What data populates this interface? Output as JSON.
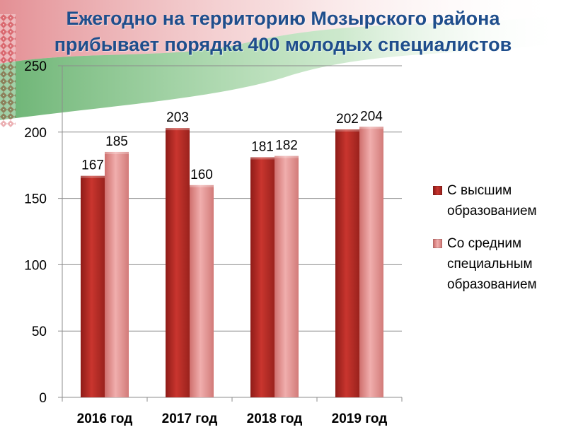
{
  "title": {
    "line1": "Ежегодно на территорию Мозырского района",
    "line2": "прибывает порядка 400 молодых специалистов"
  },
  "colors": {
    "series1": "#c0302a",
    "series2": "#e59c9b",
    "grid": "#8c8c8c",
    "title": "#1f4e8c",
    "flag_red": "#c8202a",
    "flag_green": "#3a9a45"
  },
  "legend": {
    "items": [
      {
        "label": "С высшим образованием",
        "color": "#c0302a"
      },
      {
        "label": "Со средним специальным образованием",
        "color": "#e59c9b"
      }
    ]
  },
  "chart_data": {
    "type": "bar",
    "title": "Ежегодно на территорию Мозырского района прибывает порядка 400 молодых специалистов",
    "categories": [
      "2016 год",
      "2017 год",
      "2018 год",
      "2019 год"
    ],
    "series": [
      {
        "name": "С высшим образованием",
        "values": [
          167,
          203,
          181,
          202
        ],
        "color": "#c0302a"
      },
      {
        "name": "Со средним специальным образованием",
        "values": [
          185,
          160,
          182,
          204
        ],
        "color": "#e59c9b"
      }
    ],
    "ylim": [
      0,
      250
    ],
    "yticks": [
      0,
      50,
      100,
      150,
      200,
      250
    ],
    "grid": true,
    "legend_position": "right",
    "data_labels": true
  }
}
